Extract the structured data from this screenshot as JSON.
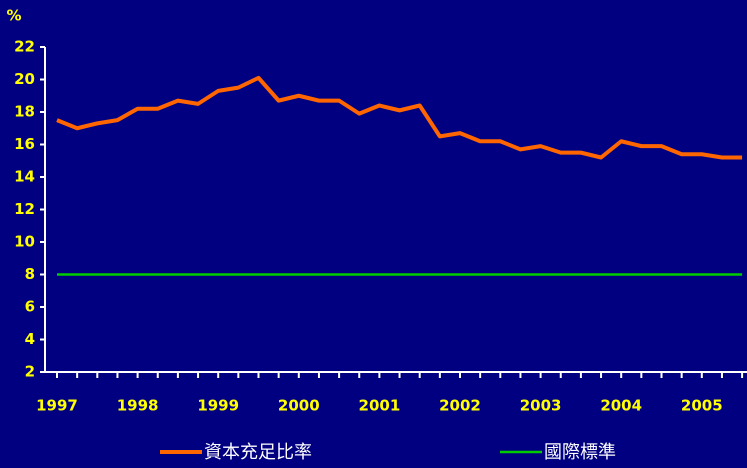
{
  "chart_data": {
    "type": "line",
    "y_label": "%",
    "categories": [
      "1997",
      null,
      null,
      null,
      "1998",
      null,
      null,
      null,
      "1999",
      null,
      null,
      null,
      "2000",
      null,
      null,
      null,
      "2001",
      null,
      null,
      null,
      "2002",
      null,
      null,
      null,
      "2003",
      null,
      null,
      null,
      "2004",
      null,
      null,
      null,
      "2005",
      null,
      null
    ],
    "series": [
      {
        "name": "資本充足比率",
        "color": "#ff6600",
        "values": [
          17.5,
          17.0,
          17.3,
          17.5,
          18.2,
          18.2,
          18.7,
          18.5,
          19.3,
          19.5,
          20.1,
          18.7,
          19.0,
          18.7,
          18.7,
          17.9,
          18.4,
          18.1,
          18.4,
          16.5,
          16.7,
          16.2,
          16.2,
          15.7,
          15.9,
          15.5,
          15.5,
          15.2,
          16.2,
          15.9,
          15.9,
          15.4,
          15.4,
          15.2,
          15.2
        ]
      },
      {
        "name": "國際標準",
        "color": "#00cc00",
        "values": [
          8,
          8,
          8,
          8,
          8,
          8,
          8,
          8,
          8,
          8,
          8,
          8,
          8,
          8,
          8,
          8,
          8,
          8,
          8,
          8,
          8,
          8,
          8,
          8,
          8,
          8,
          8,
          8,
          8,
          8,
          8,
          8,
          8,
          8,
          8
        ]
      }
    ],
    "ylim": [
      2,
      22
    ],
    "yticks": [
      2,
      4,
      6,
      8,
      10,
      12,
      14,
      16,
      18,
      20,
      22
    ]
  }
}
